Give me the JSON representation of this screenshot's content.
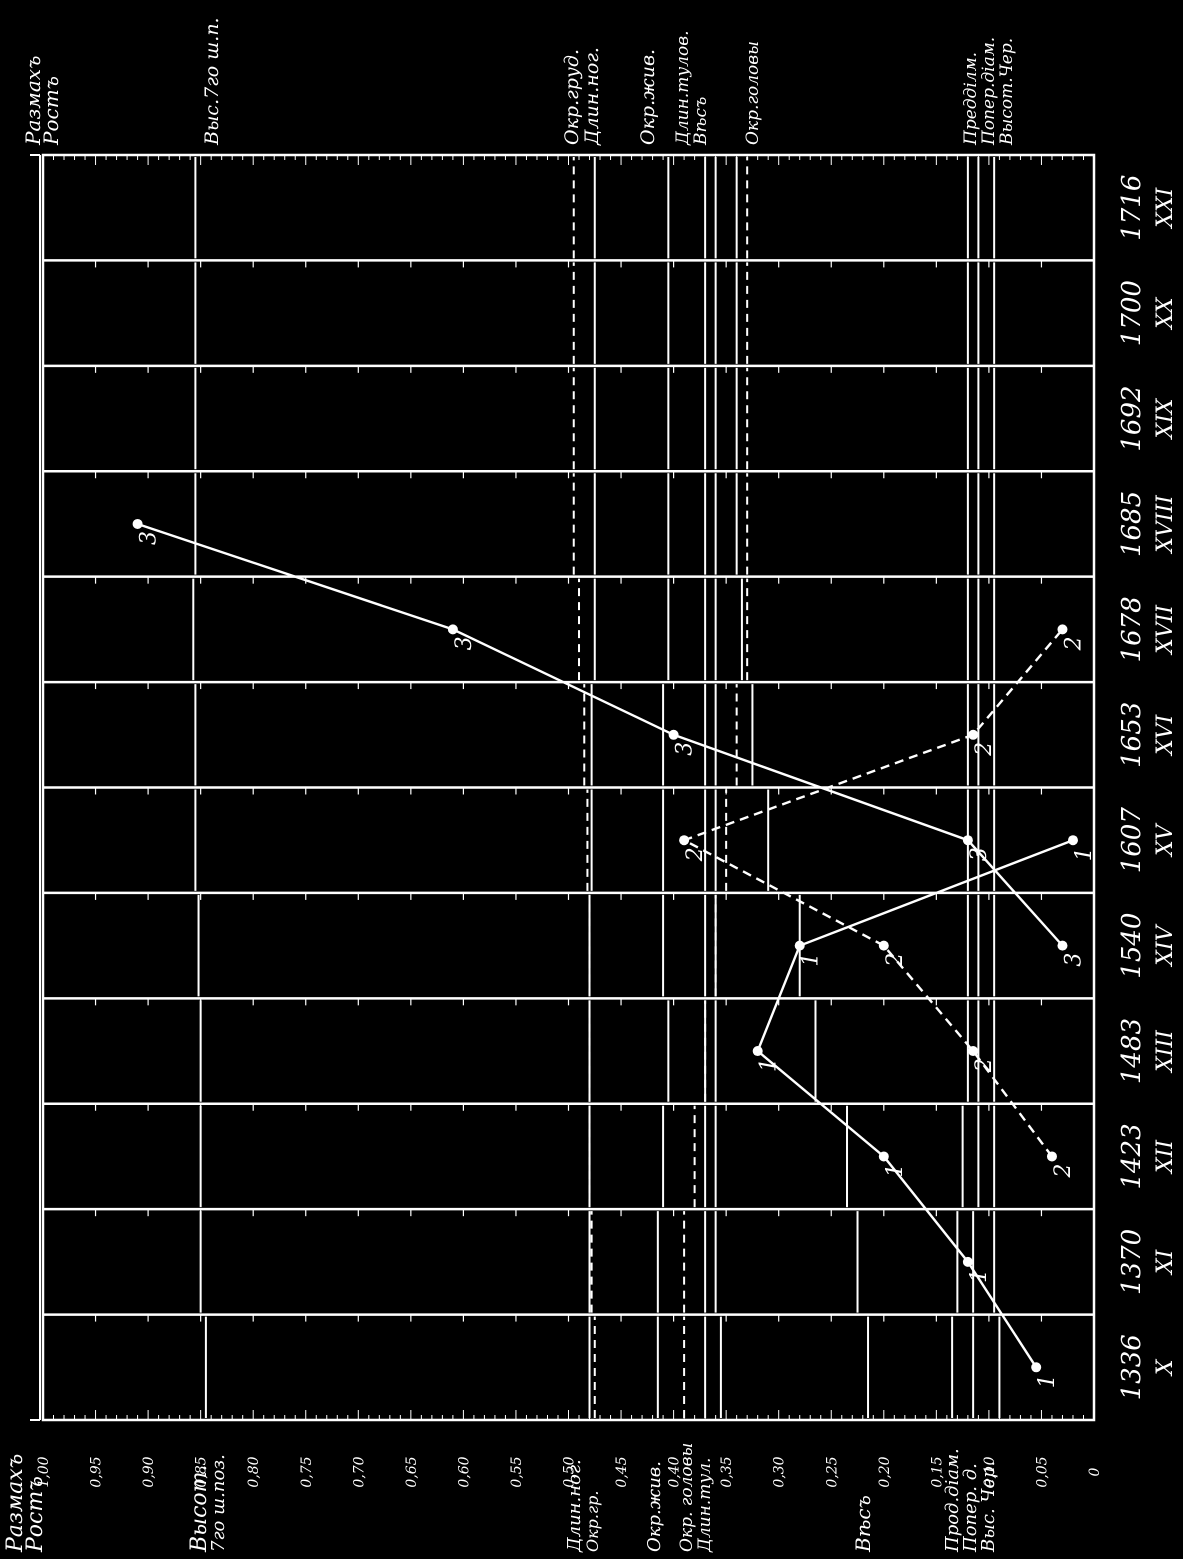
{
  "colors": {
    "background": "#000000",
    "foreground": "#ffffff"
  },
  "chart_data": {
    "type": "line",
    "orientation": "rotated-90-clockwise",
    "axis_title": {
      "range": "Размахъ",
      "growth": "Ростъ"
    },
    "value_axis": {
      "range": [
        0,
        1.0
      ],
      "ticks": [
        {
          "v": 1.0,
          "label": "1,00"
        },
        {
          "v": 0.95,
          "label": "0,95"
        },
        {
          "v": 0.9,
          "label": "0,90"
        },
        {
          "v": 0.85,
          "label": "0,85"
        },
        {
          "v": 0.8,
          "label": "0,80"
        },
        {
          "v": 0.75,
          "label": "0,75"
        },
        {
          "v": 0.7,
          "label": "0,70"
        },
        {
          "v": 0.65,
          "label": "0,65"
        },
        {
          "v": 0.6,
          "label": "0,60"
        },
        {
          "v": 0.55,
          "label": "0,55"
        },
        {
          "v": 0.5,
          "label": "0,50"
        },
        {
          "v": 0.45,
          "label": "0,45"
        },
        {
          "v": 0.4,
          "label": "0,40"
        },
        {
          "v": 0.35,
          "label": "0,35"
        },
        {
          "v": 0.3,
          "label": "0,30"
        },
        {
          "v": 0.25,
          "label": "0,25"
        },
        {
          "v": 0.2,
          "label": "0,20"
        },
        {
          "v": 0.15,
          "label": "0,15"
        },
        {
          "v": 0.1,
          "label": "0,10"
        },
        {
          "v": 0.05,
          "label": "0,05"
        },
        {
          "v": 0.0,
          "label": "0"
        }
      ]
    },
    "categories": [
      {
        "height": "1336",
        "roman": "X"
      },
      {
        "height": "1370",
        "roman": "XI"
      },
      {
        "height": "1423",
        "roman": "XII"
      },
      {
        "height": "1483",
        "roman": "XIII"
      },
      {
        "height": "1540",
        "roman": "XIV"
      },
      {
        "height": "1607",
        "roman": "XV"
      },
      {
        "height": "1653",
        "roman": "XVI"
      },
      {
        "height": "1678",
        "roman": "XVII"
      },
      {
        "height": "1685",
        "roman": "XVIII"
      },
      {
        "height": "1692",
        "roman": "XIX"
      },
      {
        "height": "1700",
        "roman": "XX"
      },
      {
        "height": "1716",
        "roman": "XXI"
      }
    ],
    "series": [
      {
        "marker": "1",
        "style": "solid",
        "points": [
          [
            0,
            0.055
          ],
          [
            1,
            0.12
          ],
          [
            2,
            0.2
          ],
          [
            3,
            0.32
          ],
          [
            4,
            0.28
          ],
          [
            5,
            0.02
          ]
        ]
      },
      {
        "marker": "2",
        "style": "dashed",
        "points": [
          [
            2,
            0.04
          ],
          [
            3,
            0.115
          ],
          [
            4,
            0.2
          ],
          [
            5,
            0.39
          ],
          [
            6,
            0.115
          ],
          [
            7,
            0.03
          ]
        ]
      },
      {
        "marker": "3",
        "style": "solid",
        "points": [
          [
            4,
            0.03
          ],
          [
            5,
            0.12
          ],
          [
            6,
            0.4
          ],
          [
            7,
            0.61
          ],
          [
            8,
            0.91
          ]
        ]
      }
    ],
    "measures": [
      {
        "key": "vys7",
        "style": "solid",
        "values": [
          0.845,
          0.85,
          0.85,
          0.85,
          0.852,
          0.855,
          0.855,
          0.857,
          0.855,
          0.855,
          0.855,
          0.855
        ]
      },
      {
        "key": "okrgrud",
        "style": "dashed",
        "values": [
          0.475,
          0.478,
          0.48,
          0.48,
          0.48,
          0.482,
          0.485,
          0.49,
          0.495,
          0.495,
          0.495,
          0.495
        ]
      },
      {
        "key": "dlinnog",
        "style": "solid",
        "values": [
          0.48,
          0.48,
          0.48,
          0.48,
          0.48,
          0.478,
          0.478,
          0.475,
          0.475,
          0.475,
          0.475,
          0.475
        ]
      },
      {
        "key": "okrzhiv",
        "style": "solid",
        "values": [
          0.415,
          0.415,
          0.41,
          0.405,
          0.41,
          0.41,
          0.41,
          0.405,
          0.405,
          0.405,
          0.405,
          0.405
        ]
      },
      {
        "key": "okrgol",
        "style": "dashed",
        "values": [
          0.39,
          0.39,
          0.38,
          0.37,
          0.36,
          0.35,
          0.34,
          0.33,
          0.33,
          0.33,
          0.33,
          0.33
        ]
      },
      {
        "key": "dlintul",
        "style": "solid",
        "values": [
          0.37,
          0.37,
          0.37,
          0.37,
          0.37,
          0.37,
          0.37,
          0.37,
          0.37,
          0.37,
          0.37,
          0.37
        ]
      },
      {
        "key": "dlintul2",
        "style": "solid",
        "values": [
          0.355,
          0.36,
          0.36,
          0.36,
          0.36,
          0.36,
          0.36,
          0.36,
          0.36,
          0.36,
          0.36,
          0.36
        ]
      },
      {
        "key": "ves",
        "style": "solid",
        "values": [
          0.215,
          0.225,
          0.235,
          0.265,
          0.28,
          0.31,
          0.325,
          0.335,
          0.34,
          0.34,
          0.34,
          0.34
        ]
      },
      {
        "key": "proddiam",
        "style": "solid",
        "values": [
          0.135,
          0.13,
          0.125,
          0.12,
          0.12,
          0.12,
          0.12,
          0.12,
          0.12,
          0.12,
          0.12,
          0.12
        ]
      },
      {
        "key": "popdiam",
        "style": "solid",
        "values": [
          0.115,
          0.115,
          0.11,
          0.11,
          0.11,
          0.11,
          0.11,
          0.11,
          0.11,
          0.11,
          0.11,
          0.11
        ]
      },
      {
        "key": "vyscher",
        "style": "solid",
        "values": [
          0.09,
          0.095,
          0.095,
          0.095,
          0.095,
          0.095,
          0.095,
          0.095,
          0.095,
          0.095,
          0.095,
          0.095
        ]
      }
    ],
    "labels_bottom": {
      "razmah": "Размахъ",
      "rost": "Ростъ",
      "vysot": "Высот.",
      "vysot_sub": "7го ш.поз.",
      "dlin_nog": "Длин.ног.",
      "okr_gr": "Окр.гр.",
      "okr_zhiv": "Окр.жив.",
      "okr_golovy": "Окр. головы",
      "dlin_tul": "Длин.тул.",
      "ves": "Вѣсъ",
      "prod_diam": "Прод.діам.",
      "poper_d": "Попер. д.",
      "vys_cher": "Выс. Чер."
    },
    "labels_top": {
      "razmah": "Размахъ",
      "rost": "Ростъ",
      "vys7": "Выс.7го ш.п.",
      "okr_grud": "Окр.груд.",
      "dlin_nog": "Длин.ног.",
      "okr_zhiv": "Окр.жив.",
      "dlin_tulov": "Длин.тулов.",
      "ves": "Вѣсъ",
      "okr_golovy": "Окр.головы",
      "pred_diam": "Предділм.",
      "poper_diam": "Попер.діам.",
      "vysot_cher": "Высот.Чер."
    }
  }
}
